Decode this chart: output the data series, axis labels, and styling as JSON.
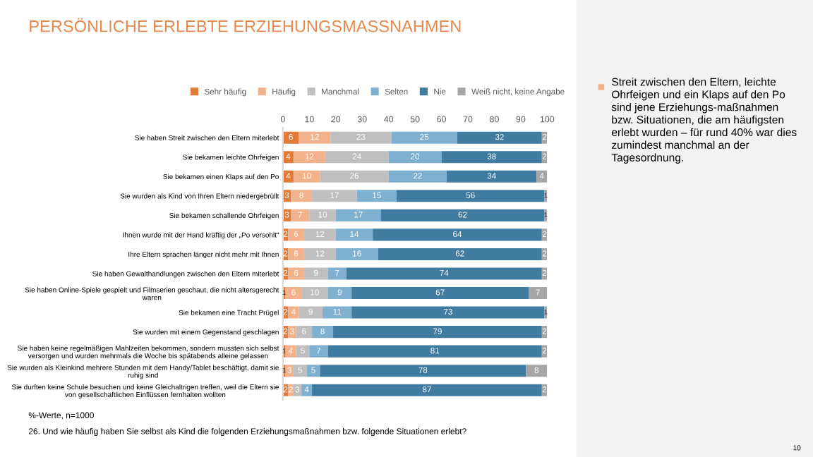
{
  "chart_data": {
    "type": "bar",
    "orientation": "horizontal",
    "stacked": true,
    "title": "PERSÖNLICHE ERLEBTE ERZIEHUNGSMASSNAHMEN",
    "categories": [
      "Sie haben Streit zwischen den Eltern miterlebt",
      "Sie bekamen leichte Ohrfeigen",
      "Sie bekamen einen Klaps auf den Po",
      "Sie wurden als Kind von Ihren Eltern niedergebrüllt",
      "Sie bekamen schallende Ohrfeigen",
      "Ihnen wurde mit der Hand kräftig der „Po versohlt“",
      "Ihre Eltern sprachen länger nicht mehr mit Ihnen",
      "Sie haben Gewalthandlungen zwischen den Eltern miterlebt",
      "Sie haben Online-Spiele gespielt und Filmserien geschaut, die nicht altersgerecht waren",
      "Sie bekamen eine Tracht Prügel",
      "Sie wurden mit einem Gegenstand geschlagen",
      "Sie haben keine regelmäßigen Mahlzeiten bekommen, sondern mussten sich selbst versorgen und wurden mehrmals die Woche bis spätabends alleine gelassen",
      "Sie wurden als Kleinkind mehrere Stunden mit dem Handy/Tablet beschäftigt, damit sie ruhig sind",
      "Sie durften keine Schule besuchen und keine Gleichaltrigen treffen, weil die Eltern sie von gesellschaftlichen Einflüssen fernhalten wollten"
    ],
    "series": [
      {
        "name": "Sehr häufig",
        "color": "#e07b39",
        "values": [
          6,
          4,
          4,
          3,
          3,
          2,
          2,
          2,
          1,
          2,
          2,
          1,
          1,
          2
        ]
      },
      {
        "name": "Häufig",
        "color": "#f2b38c",
        "values": [
          12,
          12,
          10,
          8,
          7,
          6,
          6,
          6,
          6,
          4,
          3,
          4,
          3,
          2
        ]
      },
      {
        "name": "Manchmal",
        "color": "#bfbfbf",
        "values": [
          23,
          24,
          26,
          17,
          10,
          12,
          12,
          9,
          10,
          9,
          6,
          5,
          5,
          3
        ]
      },
      {
        "name": "Selten",
        "color": "#7fb0d0",
        "values": [
          25,
          20,
          22,
          15,
          17,
          14,
          16,
          7,
          9,
          11,
          8,
          7,
          5,
          4
        ]
      },
      {
        "name": "Nie",
        "color": "#3f7ca0",
        "values": [
          32,
          38,
          34,
          56,
          62,
          64,
          62,
          74,
          67,
          73,
          79,
          81,
          78,
          87
        ]
      },
      {
        "name": "Weiß nicht, keine Angabe",
        "color": "#a6a6a6",
        "values": [
          2,
          2,
          4,
          1,
          1,
          2,
          2,
          2,
          7,
          1,
          2,
          2,
          8,
          2
        ]
      }
    ],
    "xlim": [
      0,
      100
    ],
    "xticks": [
      0,
      10,
      20,
      30,
      40,
      50,
      60,
      70,
      80,
      90,
      100
    ],
    "grid": false,
    "legend": "top",
    "data_labels": true,
    "annotations": [
      "Streit zwischen den Eltern, leichte Ohrfeigen und ein Klaps auf den Po sind jene Erziehungs-maßnahmen bzw. Situationen, die am häufigsten erlebt wurden – für rund 40% war dies zumindest manchmal an der Tagesordnung.",
      "%-Werte, n=1000",
      "26. Und wie häufig haben Sie selbst als Kind die folgenden Erziehungsmaßnahmen bzw. folgende Situationen erlebt?",
      "10"
    ]
  }
}
